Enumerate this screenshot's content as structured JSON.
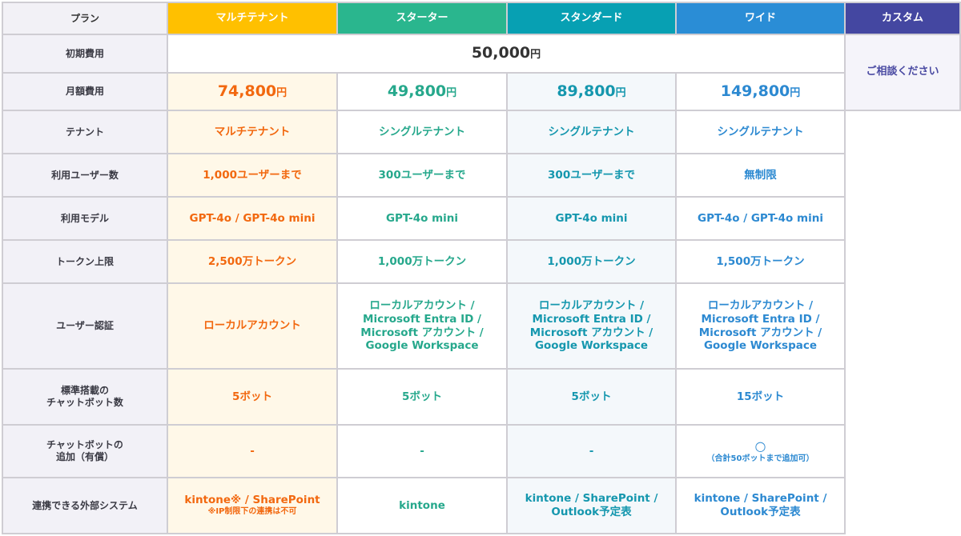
{
  "colors": {
    "multi": "#FFC000",
    "starter": "#2AB68E",
    "standard": "#07A0B3",
    "wide": "#2A8DD6",
    "custom": "#4447A1"
  },
  "header": {
    "label": "プラン",
    "plans": [
      "マルチテナント",
      "スターター",
      "スタンダード",
      "ワイド",
      "カスタム"
    ]
  },
  "initial": {
    "label": "初期費用",
    "value": "50,000",
    "unit": "円"
  },
  "custom_text": "ご相談ください",
  "monthly": {
    "label": "月額費用",
    "values": [
      "74,800",
      "49,800",
      "89,800",
      "149,800"
    ],
    "unit": "円"
  },
  "rows": [
    {
      "label": "テナント",
      "values": [
        "マルチテナント",
        "シングルテナント",
        "シングルテナント",
        "シングルテナント"
      ]
    },
    {
      "label": "利用ユーザー数",
      "values": [
        "1,000ユーザーまで",
        "300ユーザーまで",
        "300ユーザーまで",
        "無制限"
      ]
    },
    {
      "label": "利用モデル",
      "values": [
        "GPT-4o / GPT-4o mini",
        "GPT-4o mini",
        "GPT-4o mini",
        "GPT-4o / GPT-4o mini"
      ]
    },
    {
      "label": "トークン上限",
      "values": [
        "2,500万トークン",
        "1,000万トークン",
        "1,000万トークン",
        "1,500万トークン"
      ]
    },
    {
      "label": "ユーザー認証",
      "values": [
        "ローカルアカウント",
        "ローカルアカウント / Microsoft Entra ID / Microsoft アカウント / Google Workspace",
        "ローカルアカウント / Microsoft Entra ID / Microsoft アカウント / Google Workspace",
        "ローカルアカウント / Microsoft Entra ID / Microsoft アカウント / Google Workspace"
      ]
    },
    {
      "label": "標準搭載の チャットボット数",
      "values": [
        "5ボット",
        "5ボット",
        "5ボット",
        "15ボット"
      ]
    },
    {
      "label": "チャットボットの 追加（有償）",
      "values": [
        "-",
        "-",
        "-",
        "○"
      ],
      "wide_note": "（合計50ボットまで追加可）"
    },
    {
      "label": "連携できる外部システム",
      "values": [
        "kintone※ / SharePoint",
        "kintone",
        "kintone / SharePoint / Outlook予定表",
        "kintone / SharePoint / Outlook予定表"
      ],
      "multi_note": "※IP制限下の連携は不可"
    }
  ]
}
